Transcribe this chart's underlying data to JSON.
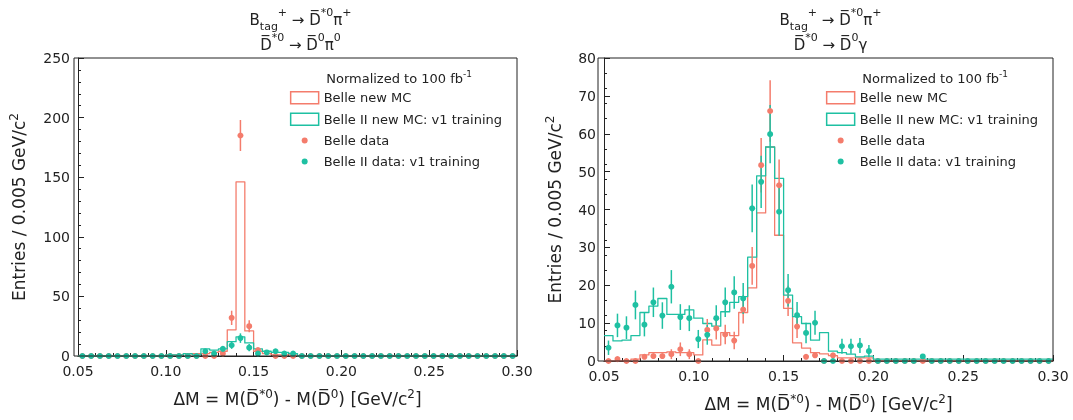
{
  "chart_data": [
    {
      "type": "histogram",
      "title": "B$_{tag}$$^{+}$ → D̅$^{*0}$π$^{+}$\nD̅$^{*0}$ → D̅$^{0}$π$^{0}$",
      "xlabel": "ΔM = M(D̅$^{*0}$) - M(D̅$^{0}$) [GeV/c$^{2}$]",
      "ylabel": "Entries / 0.005 GeV/c$^{2}$",
      "legend_title": "Normalized to 100 fb$^{-1}$",
      "legend": "top right",
      "grid": false,
      "xlim": [
        0.05,
        0.3
      ],
      "xticks": [
        0.05,
        {
          "value": 0.1,
          "label": "0.10"
        },
        0.15,
        {
          "value": 0.2,
          "label": "0.20"
        },
        0.25,
        {
          "value": 0.3,
          "label": "0.30"
        }
      ],
      "ylim": [
        0,
        250
      ],
      "yticks": [
        0,
        50,
        100,
        150,
        200,
        250
      ],
      "bins": [
        0.05,
        0.055,
        0.06,
        0.065,
        0.07,
        0.075,
        0.08,
        0.085,
        0.09,
        0.095,
        0.1,
        0.105,
        0.11,
        0.115,
        0.12,
        0.125,
        0.13,
        0.135,
        0.14,
        0.145,
        0.15,
        0.155,
        0.16,
        0.165,
        0.17,
        0.175,
        0.18,
        0.185,
        0.19,
        0.195,
        0.2,
        0.205,
        0.21,
        0.215,
        0.22,
        0.225,
        0.23,
        0.235,
        0.24,
        0.245,
        0.25,
        0.255,
        0.26,
        0.265,
        0.27,
        0.275,
        0.28,
        0.285,
        0.29,
        0.295,
        0.3
      ],
      "series": [
        {
          "name": "Belle new MC",
          "color": "#f47c6c",
          "values": [
            0,
            0,
            0,
            0,
            0,
            0,
            0,
            0,
            0,
            0,
            1,
            1,
            2,
            2,
            2,
            3,
            4,
            22,
            146,
            21,
            4,
            2,
            1,
            1,
            1,
            0,
            0,
            0,
            0,
            0,
            0,
            0,
            0,
            0,
            0,
            0,
            0,
            0,
            0,
            0,
            0,
            0,
            0,
            0,
            0,
            0,
            0,
            0,
            0,
            0
          ]
        },
        {
          "name": "Belle II new MC: v1 training",
          "color": "#1ec0a2",
          "values": [
            0,
            0,
            0,
            0,
            0,
            0,
            0,
            0,
            0,
            0,
            1,
            1,
            2,
            1,
            6,
            5,
            6,
            12,
            16,
            11,
            6,
            4,
            3,
            3,
            2,
            0,
            0,
            0,
            0,
            0,
            0,
            0,
            0,
            0,
            0,
            0,
            0,
            0,
            0,
            0,
            0,
            0,
            0,
            0,
            0,
            0,
            0,
            0,
            0,
            0
          ]
        },
        {
          "name": "Belle data",
          "type": "scatter",
          "marker": "circle",
          "color": "#f47c6c",
          "x": [
            0.0525,
            0.0575,
            0.0625,
            0.0675,
            0.0725,
            0.0775,
            0.0825,
            0.0875,
            0.0925,
            0.0975,
            0.1025,
            0.1075,
            0.1125,
            0.1175,
            0.1225,
            0.1275,
            0.1325,
            0.1375,
            0.1425,
            0.1475,
            0.1525,
            0.1575,
            0.1625,
            0.1675,
            0.1725,
            0.1775,
            0.1825,
            0.1875,
            0.1925,
            0.1975,
            0.2025,
            0.2075,
            0.2125,
            0.2175,
            0.2225,
            0.2275,
            0.2325,
            0.2375,
            0.2425,
            0.2475,
            0.2525,
            0.2575,
            0.2625,
            0.2675,
            0.2725,
            0.2775,
            0.2825,
            0.2875,
            0.2925,
            0.2975
          ],
          "values": [
            0,
            0,
            0,
            0,
            0,
            0,
            0,
            0,
            0,
            0,
            0,
            0,
            0,
            0,
            0,
            0,
            2,
            32,
            185,
            25,
            5,
            null,
            0,
            0,
            0,
            0,
            0,
            0,
            0,
            0,
            0,
            0,
            0,
            0,
            0,
            0,
            0,
            0,
            0,
            0,
            0,
            0,
            0,
            0,
            0,
            0,
            0,
            0,
            0,
            0
          ],
          "errors": [
            null,
            null,
            null,
            null,
            null,
            null,
            null,
            null,
            null,
            null,
            null,
            null,
            null,
            null,
            null,
            null,
            null,
            6,
            13,
            5,
            null,
            null,
            null,
            null,
            null,
            null,
            null,
            null,
            null,
            null,
            null,
            null,
            null,
            null,
            null,
            null,
            null,
            null,
            null,
            null,
            null,
            null,
            null,
            null,
            null,
            null,
            null,
            null,
            null,
            null
          ]
        },
        {
          "name": "Belle II data: v1 training",
          "type": "scatter",
          "marker": "circle",
          "color": "#1ec0a2",
          "x": [
            0.0525,
            0.0575,
            0.0625,
            0.0675,
            0.0725,
            0.0775,
            0.0825,
            0.0875,
            0.0925,
            0.0975,
            0.1025,
            0.1075,
            0.1125,
            0.1175,
            0.1225,
            0.1275,
            0.1325,
            0.1375,
            0.1425,
            0.1475,
            0.1525,
            0.1575,
            0.1625,
            0.1675,
            0.1725,
            0.1775,
            0.1825,
            0.1875,
            0.1925,
            0.1975,
            0.2025,
            0.2075,
            0.2125,
            0.2175,
            0.2225,
            0.2275,
            0.2325,
            0.2375,
            0.2425,
            0.2475,
            0.2525,
            0.2575,
            0.2625,
            0.2675,
            0.2725,
            0.2775,
            0.2825,
            0.2875,
            0.2925,
            0.2975
          ],
          "values": [
            0,
            0,
            0,
            0,
            0,
            0,
            0,
            0,
            0,
            0,
            0,
            0,
            0,
            0,
            4,
            2,
            6,
            9,
            15,
            7,
            2,
            3,
            4,
            2,
            2,
            0,
            0,
            0,
            0,
            0,
            0,
            0,
            0,
            0,
            0,
            0,
            0,
            0,
            0,
            0,
            0,
            0,
            0,
            0,
            0,
            0,
            0,
            0,
            0,
            0
          ],
          "errors": [
            null,
            null,
            null,
            null,
            null,
            null,
            null,
            null,
            null,
            null,
            null,
            null,
            null,
            null,
            null,
            null,
            null,
            3,
            4,
            3,
            null,
            null,
            null,
            null,
            null,
            null,
            null,
            null,
            null,
            null,
            null,
            null,
            null,
            null,
            null,
            null,
            null,
            null,
            null,
            null,
            null,
            null,
            null,
            null,
            null,
            null,
            null,
            null,
            null,
            null
          ]
        }
      ]
    },
    {
      "type": "histogram",
      "title": "B$_{tag}$$^{+}$ → D̅$^{*0}$π$^{+}$\nD̅$^{*0}$ → D̅$^{0}$γ",
      "xlabel": "ΔM = M(D̅$^{*0}$) - M(D̅$^{0}$) [GeV/c$^{2}$]",
      "ylabel": "Entries / 0.005 GeV/c$^{2}$",
      "legend_title": "Normalized to 100 fb$^{-1}$",
      "legend": "top right",
      "grid": false,
      "xlim": [
        0.05,
        0.3
      ],
      "xticks": [
        0.05,
        {
          "value": 0.1,
          "label": "0.10"
        },
        0.15,
        {
          "value": 0.2,
          "label": "0.20"
        },
        0.25,
        {
          "value": 0.3,
          "label": "0.30"
        }
      ],
      "ylim": [
        0,
        80
      ],
      "yticks": [
        0,
        10,
        20,
        30,
        40,
        50,
        60,
        70,
        80
      ],
      "bins": [
        0.05,
        0.055,
        0.06,
        0.065,
        0.07,
        0.075,
        0.08,
        0.085,
        0.09,
        0.095,
        0.1,
        0.105,
        0.11,
        0.115,
        0.12,
        0.125,
        0.13,
        0.135,
        0.14,
        0.145,
        0.15,
        0.155,
        0.16,
        0.165,
        0.17,
        0.175,
        0.18,
        0.185,
        0.19,
        0.195,
        0.2,
        0.205,
        0.21,
        0.215,
        0.22,
        0.225,
        0.23,
        0.235,
        0.24,
        0.245,
        0.25,
        0.255,
        0.26,
        0.265,
        0.27,
        0.275,
        0.28,
        0.285,
        0.29,
        0.295,
        0.3
      ],
      "series": [
        {
          "name": "Belle new MC",
          "color": "#f47c6c",
          "values": [
            0,
            0,
            0,
            0.5,
            1.6,
            2.2,
            2.2,
            2.4,
            2.2,
            2.2,
            1.6,
            5.6,
            4.2,
            7.5,
            6.7,
            12.8,
            19.3,
            39.1,
            56.5,
            33.2,
            13.9,
            4.8,
            3.4,
            2.2,
            1.9,
            1.4,
            0.8,
            0.8,
            0.8,
            0.8,
            0,
            0,
            0,
            0,
            0,
            0,
            0,
            0,
            0,
            0,
            0,
            0,
            0,
            0,
            0,
            0,
            0,
            0,
            0,
            0
          ]
        },
        {
          "name": "Belle II new MC: v1 training",
          "color": "#1ec0a2",
          "values": [
            6.7,
            5.3,
            5.5,
            6.7,
            12.8,
            14.5,
            16.5,
            12.3,
            12.3,
            13.5,
            11.3,
            9.9,
            9.2,
            13,
            15.5,
            17,
            27.4,
            48.9,
            56.5,
            48.2,
            17.4,
            11.7,
            9.9,
            5.5,
            7.5,
            2.6,
            2.2,
            1.8,
            1.1,
            1.3,
            0.5,
            0.5,
            0.5,
            0.5,
            0.5,
            0.5,
            0.5,
            0.5,
            0.5,
            0.5,
            0.5,
            0.5,
            0.5,
            0.5,
            0.5,
            0.5,
            0.5,
            0.5,
            0.5,
            0.5
          ]
        },
        {
          "name": "Belle data",
          "type": "scatter",
          "marker": "circle",
          "color": "#f47c6c",
          "x": [
            0.0525,
            0.0575,
            0.0625,
            0.0675,
            0.0725,
            0.0775,
            0.0825,
            0.0875,
            0.0925,
            0.0975,
            0.1025,
            0.1075,
            0.1125,
            0.1175,
            0.1225,
            0.1275,
            0.1325,
            0.1375,
            0.1425,
            0.1475,
            0.1525,
            0.1575,
            0.1625,
            0.1675,
            0.1725,
            0.1775,
            0.1825,
            0.1875,
            0.1925,
            0.1975,
            0.2025,
            0.2075,
            0.2125,
            0.2175,
            0.2225,
            0.2275,
            0.2325,
            0.2375,
            0.2425,
            0.2475,
            0.2525,
            0.2575,
            0.2625,
            0.2675,
            0.2725,
            0.2775,
            0.2825,
            0.2875,
            0.2925,
            0.2975
          ],
          "values": [
            0,
            0.5,
            0,
            0,
            1.1,
            1.3,
            1.3,
            1.8,
            3.1,
            1.8,
            0,
            8.2,
            8.6,
            7,
            5.4,
            13.6,
            25.1,
            51.7,
            66,
            46.4,
            15.9,
            9.1,
            1.1,
            1.5,
            0,
            1.5,
            0,
            0,
            0,
            0,
            0,
            0,
            0,
            0,
            0,
            0,
            0,
            0,
            0,
            0,
            0,
            0,
            0,
            0,
            0,
            0,
            0,
            0,
            0,
            0
          ],
          "errors": [
            null,
            null,
            null,
            null,
            null,
            null,
            null,
            1.3,
            1.8,
            1.3,
            null,
            2.9,
            2.9,
            2.6,
            2.3,
            3.7,
            5,
            7.2,
            8.1,
            6.8,
            4,
            3,
            null,
            null,
            null,
            null,
            null,
            null,
            null,
            null,
            null,
            null,
            null,
            null,
            null,
            null,
            null,
            null,
            null,
            null,
            null,
            null,
            null,
            null,
            null,
            null,
            null,
            null,
            null,
            null
          ]
        },
        {
          "name": "Belle II data: v1 training",
          "type": "scatter",
          "marker": "circle",
          "color": "#1ec0a2",
          "x": [
            0.0525,
            0.0575,
            0.0625,
            0.0675,
            0.0725,
            0.0775,
            0.0825,
            0.0875,
            0.0925,
            0.0975,
            0.1025,
            0.1075,
            0.1125,
            0.1175,
            0.1225,
            0.1275,
            0.1325,
            0.1375,
            0.1425,
            0.1475,
            0.1525,
            0.1575,
            0.1625,
            0.1675,
            0.1725,
            0.1775,
            0.1825,
            0.1875,
            0.1925,
            0.1975,
            0.2025,
            0.2075,
            0.2125,
            0.2175,
            0.2225,
            0.2275,
            0.2325,
            0.2375,
            0.2425,
            0.2475,
            0.2525,
            0.2575,
            0.2625,
            0.2675,
            0.2725,
            0.2775,
            0.2825,
            0.2875,
            0.2925,
            0.2975
          ],
          "values": [
            3.5,
            9.4,
            8.8,
            14.8,
            9.6,
            15.5,
            12,
            19.6,
            11.6,
            11.3,
            5.8,
            6.9,
            11.3,
            15.5,
            18.1,
            16.5,
            40.3,
            47.3,
            59.9,
            39.4,
            18.7,
            12.1,
            7.4,
            10.1,
            0,
            0,
            3.9,
            3.9,
            4.1,
            2.6,
            0,
            0,
            0,
            0,
            0,
            1.2,
            0,
            0,
            0,
            0,
            0,
            0,
            0,
            0,
            0,
            0,
            0,
            0,
            0,
            0
          ],
          "errors": [
            1.9,
            3.1,
            3,
            3.8,
            3.1,
            3.9,
            3.5,
            4.4,
            3.4,
            3.4,
            2.4,
            2.6,
            3.4,
            3.9,
            4.3,
            4.1,
            6.3,
            6.9,
            7.7,
            6.3,
            4.3,
            3.5,
            2.7,
            3.2,
            null,
            null,
            2,
            2,
            2,
            1.6,
            null,
            null,
            null,
            null,
            null,
            null,
            null,
            null,
            null,
            null,
            null,
            null,
            null,
            null,
            null,
            null,
            null,
            null,
            null,
            null
          ]
        }
      ]
    }
  ]
}
